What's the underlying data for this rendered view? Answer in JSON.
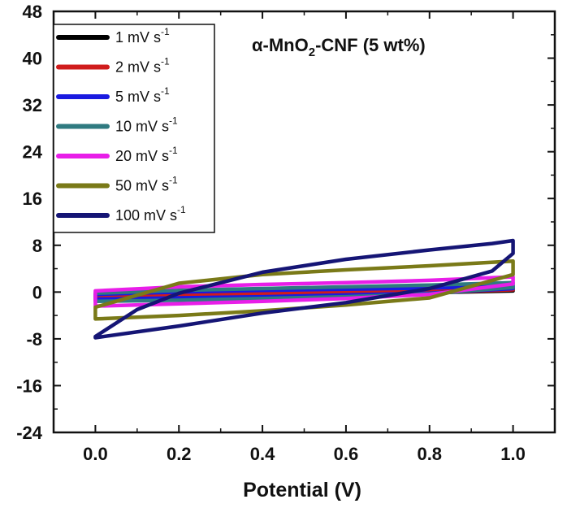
{
  "chart_data": {
    "type": "line",
    "title": "α-MnO2-CNF (5 wt%)",
    "title_parts": {
      "main": "α-MnO",
      "sub": "2",
      "rest": "-CNF (5 wt%)"
    },
    "xlabel": "Potential (V)",
    "ylabel": "",
    "xlim": [
      -0.1,
      1.1
    ],
    "ylim": [
      -24,
      48
    ],
    "xticks": [
      "0.0",
      "0.2",
      "0.4",
      "0.6",
      "0.8",
      "1.0"
    ],
    "yticks": [
      "-24",
      "-16",
      "-8",
      "0",
      "8",
      "16",
      "24",
      "32",
      "40",
      "48"
    ],
    "legend_position": "top-left",
    "grid": false,
    "series": [
      {
        "name": "1 mV s",
        "sup": "-1",
        "color": "#000000",
        "top": [
          [
            0.0,
            -0.4
          ],
          [
            0.2,
            -0.2
          ],
          [
            0.4,
            0.0
          ],
          [
            0.6,
            0.1
          ],
          [
            0.8,
            0.2
          ],
          [
            1.0,
            0.3
          ]
        ],
        "bottom": [
          [
            0.0,
            -0.5
          ],
          [
            0.2,
            -0.4
          ],
          [
            0.4,
            -0.3
          ],
          [
            0.6,
            -0.2
          ],
          [
            0.8,
            -0.1
          ],
          [
            1.0,
            0.2
          ]
        ]
      },
      {
        "name": "2 mV s",
        "sup": "-1",
        "color": "#d01c1c",
        "top": [
          [
            0.0,
            -0.5
          ],
          [
            0.2,
            -0.3
          ],
          [
            0.4,
            0.0
          ],
          [
            0.6,
            0.2
          ],
          [
            0.8,
            0.4
          ],
          [
            1.0,
            0.6
          ]
        ],
        "bottom": [
          [
            0.0,
            -0.8
          ],
          [
            0.2,
            -0.7
          ],
          [
            0.4,
            -0.5
          ],
          [
            0.6,
            -0.3
          ],
          [
            0.8,
            -0.1
          ],
          [
            1.0,
            0.4
          ]
        ]
      },
      {
        "name": "5 mV s",
        "sup": "-1",
        "color": "#1a1ae0",
        "top": [
          [
            0.0,
            -0.4
          ],
          [
            0.2,
            0.0
          ],
          [
            0.4,
            0.3
          ],
          [
            0.6,
            0.5
          ],
          [
            0.8,
            0.7
          ],
          [
            1.0,
            1.0
          ]
        ],
        "bottom": [
          [
            0.0,
            -1.2
          ],
          [
            0.2,
            -1.0
          ],
          [
            0.4,
            -0.8
          ],
          [
            0.6,
            -0.5
          ],
          [
            0.8,
            -0.2
          ],
          [
            1.0,
            0.6
          ]
        ]
      },
      {
        "name": "10 mV s",
        "sup": "-1",
        "color": "#2f7a80",
        "top": [
          [
            0.0,
            -0.2
          ],
          [
            0.2,
            0.3
          ],
          [
            0.4,
            0.6
          ],
          [
            0.6,
            0.9
          ],
          [
            0.8,
            1.2
          ],
          [
            1.0,
            1.6
          ]
        ],
        "bottom": [
          [
            0.0,
            -1.6
          ],
          [
            0.2,
            -1.4
          ],
          [
            0.4,
            -1.1
          ],
          [
            0.6,
            -0.8
          ],
          [
            0.8,
            -0.3
          ],
          [
            1.0,
            0.8
          ]
        ]
      },
      {
        "name": "20 mV s",
        "sup": "-1",
        "color": "#e81ee8",
        "top": [
          [
            0.0,
            0.2
          ],
          [
            0.2,
            0.9
          ],
          [
            0.4,
            1.3
          ],
          [
            0.6,
            1.6
          ],
          [
            0.8,
            2.0
          ],
          [
            1.0,
            2.6
          ]
        ],
        "bottom": [
          [
            0.0,
            -2.4
          ],
          [
            0.2,
            -2.0
          ],
          [
            0.4,
            -1.6
          ],
          [
            0.6,
            -1.1
          ],
          [
            0.8,
            -0.4
          ],
          [
            1.0,
            1.4
          ]
        ]
      },
      {
        "name": "50 mV s",
        "sup": "-1",
        "color": "#7a7a18",
        "top": [
          [
            0.0,
            -2.6
          ],
          [
            0.2,
            1.5
          ],
          [
            0.4,
            3.0
          ],
          [
            0.6,
            3.8
          ],
          [
            0.8,
            4.5
          ],
          [
            1.0,
            5.3
          ]
        ],
        "bottom": [
          [
            0.0,
            -4.6
          ],
          [
            0.2,
            -4.0
          ],
          [
            0.4,
            -3.2
          ],
          [
            0.6,
            -2.2
          ],
          [
            0.8,
            -1.0
          ],
          [
            1.0,
            3.0
          ]
        ]
      },
      {
        "name": "100 mV s",
        "sup": "-1",
        "color": "#151575",
        "top": [
          [
            0.0,
            -7.6
          ],
          [
            0.1,
            -3.0
          ],
          [
            0.2,
            -0.2
          ],
          [
            0.4,
            3.4
          ],
          [
            0.6,
            5.6
          ],
          [
            0.8,
            7.2
          ],
          [
            0.95,
            8.3
          ],
          [
            1.0,
            8.8
          ]
        ],
        "bottom": [
          [
            0.0,
            -7.8
          ],
          [
            0.2,
            -5.8
          ],
          [
            0.4,
            -3.6
          ],
          [
            0.6,
            -1.8
          ],
          [
            0.8,
            0.6
          ],
          [
            0.95,
            3.6
          ],
          [
            1.0,
            6.6
          ]
        ]
      }
    ]
  }
}
